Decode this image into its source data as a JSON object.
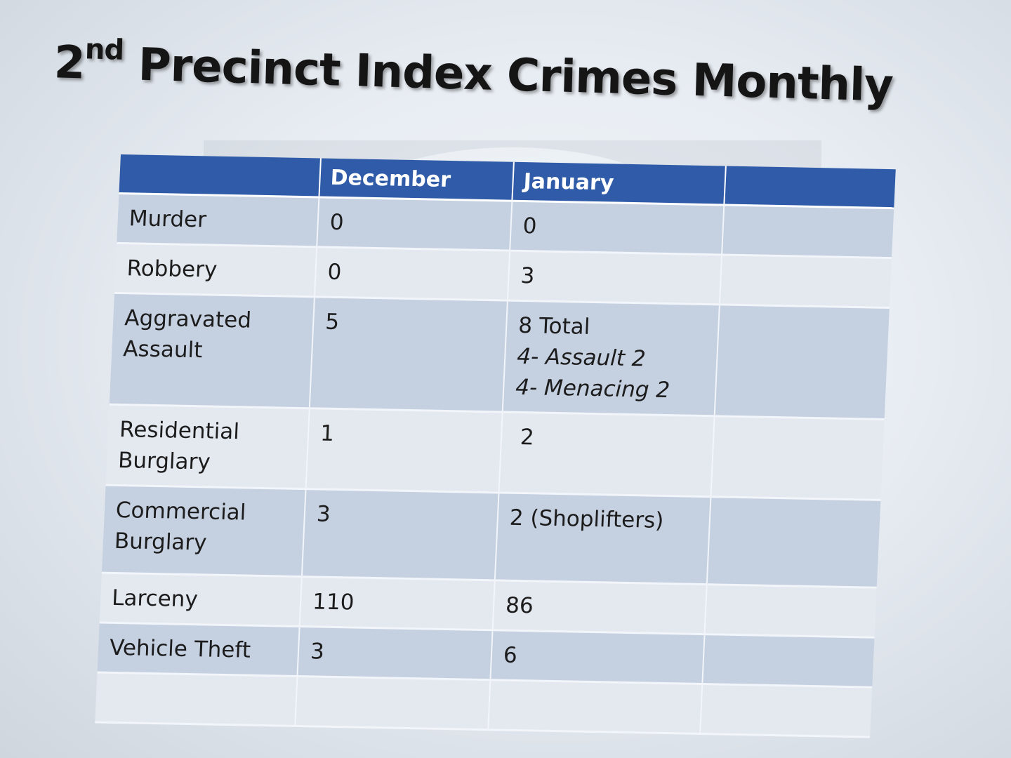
{
  "slide": {
    "title_main": "2",
    "title_sup": "nd",
    "title_rest": " Precinct Index Crimes Monthly"
  },
  "table": {
    "headers": [
      "",
      "December",
      "January",
      ""
    ],
    "rows": [
      {
        "crime": "Murder",
        "december": "0",
        "january": "0"
      },
      {
        "crime": "Robbery",
        "december": "0",
        "january": "3"
      },
      {
        "crime_line1": "Aggravated",
        "crime_line2": "Assault",
        "december": "5",
        "january_line1": "8 Total",
        "january_line2": "4- Assault 2",
        "january_line3": "4- Menacing 2"
      },
      {
        "crime_line1": "Residential",
        "crime_line2": "Burglary",
        "december": "1",
        "january": " 2"
      },
      {
        "crime_line1": "Commercial",
        "crime_line2": "Burglary",
        "december": "3",
        "january": "2 (Shoplifters)"
      },
      {
        "crime": "Larceny",
        "december": "110",
        "january": "86"
      },
      {
        "crime": "Vehicle Theft",
        "december": "3",
        "january": "6"
      },
      {
        "crime": "",
        "december": "",
        "january": ""
      }
    ]
  },
  "colors": {
    "header_bg": "#2f5ba8",
    "row_dark": "#c5d0e1",
    "row_light": "#e4e9f0",
    "title_text": "#151515"
  }
}
